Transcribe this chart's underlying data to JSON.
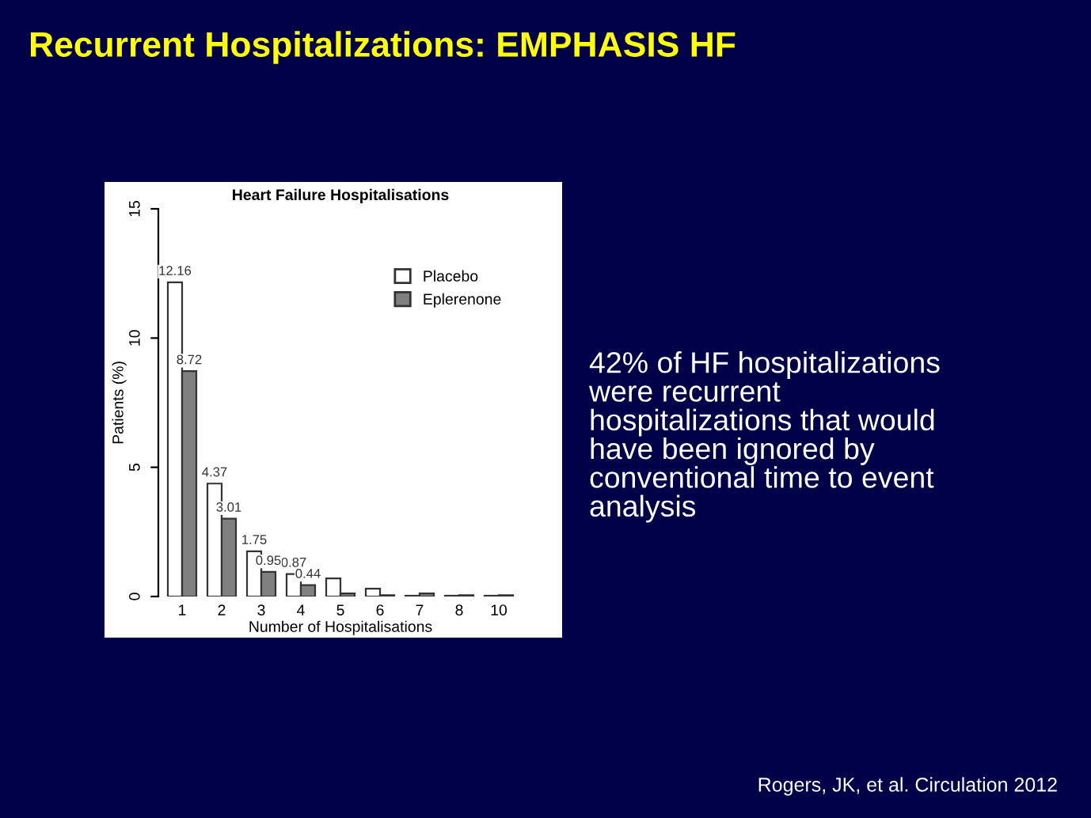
{
  "chart_data": {
    "type": "bar",
    "title": "Recurrent Hospitalizations: EMPHASIS HF",
    "subtitle": "Heart Failure Hospitalisations",
    "xlabel": "Number of Hospitalisations",
    "ylabel": "Patients (%)",
    "categories": [
      "1",
      "2",
      "3",
      "4",
      "5",
      "6",
      "7",
      "8",
      "10"
    ],
    "series": [
      {
        "name": "Placebo",
        "color": "#ffffff",
        "values": [
          12.16,
          4.37,
          1.75,
          0.87,
          0.7,
          0.3,
          0.03,
          0.03,
          0.03
        ],
        "value_labels": [
          "12.16",
          "4.37",
          "1.75",
          "0.87",
          null,
          null,
          null,
          null,
          null
        ]
      },
      {
        "name": "Eplerenone",
        "color": "#808080",
        "values": [
          8.72,
          3.01,
          0.95,
          0.44,
          0.12,
          0.05,
          0.12,
          0.05,
          0.05
        ],
        "value_labels": [
          "8.72",
          "3.01",
          "0.95",
          "0.44",
          null,
          null,
          null,
          null,
          null
        ]
      }
    ],
    "ylim": [
      0,
      15
    ],
    "yticks": [
      0,
      5,
      10,
      15
    ],
    "grid": false,
    "legend": "top right",
    "annotations": [
      "42% of HF hospitalizations\nwere recurrent\nhospitalizations that would\nhave been ignored by\nconventional time to event\nanalysis",
      "Rogers, JK, et al. Circulation 2012"
    ]
  }
}
